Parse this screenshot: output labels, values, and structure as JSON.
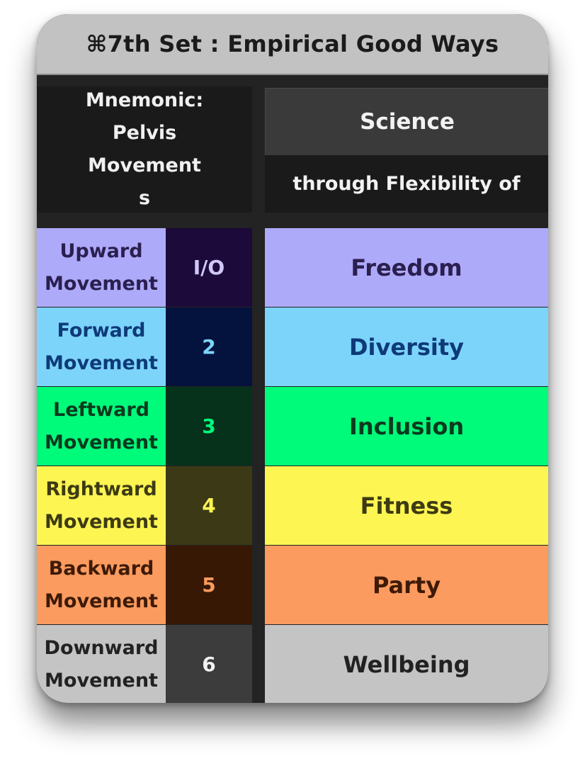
{
  "title": "⌘7th Set : Empirical Good Ways",
  "header": {
    "mnemonic_lines": [
      "Mnemonic:",
      "Pelvis",
      "Movement",
      "s"
    ],
    "science": "Science",
    "through": "through Flexibility of"
  },
  "rows": [
    {
      "label_1": "Upward",
      "label_2": "Movement",
      "num": "I/O",
      "value": "Freedom",
      "label_bg": "#aeaafa",
      "label_color": "#2a1f4e",
      "num_bg": "#1c0a3a",
      "num_color": "#cfc8f8",
      "value_bg": "#aeaafa",
      "value_color": "#2a1f4e"
    },
    {
      "label_1": "Forward",
      "label_2": "Movement",
      "num": "2",
      "value": "Diversity",
      "label_bg": "#7dd4fb",
      "label_color": "#0e3a78",
      "num_bg": "#04133d",
      "num_color": "#7dd4fb",
      "value_bg": "#7dd4fb",
      "value_color": "#0e3a78"
    },
    {
      "label_1": "Leftward",
      "label_2": "Movement",
      "num": "3",
      "value": "Inclusion",
      "label_bg": "#00fb7a",
      "label_color": "#0a3a1e",
      "num_bg": "#06311a",
      "num_color": "#00fb7a",
      "value_bg": "#00fb7a",
      "value_color": "#0a3a1e"
    },
    {
      "label_1": "Rightward",
      "label_2": "Movement",
      "num": "4",
      "value": "Fitness",
      "label_bg": "#fdf552",
      "label_color": "#3d3a13",
      "num_bg": "#3c3917",
      "num_color": "#fdf552",
      "value_bg": "#fdf552",
      "value_color": "#3d3a13"
    },
    {
      "label_1": "Backward",
      "label_2": "Movement",
      "num": "5",
      "value": "Party",
      "label_bg": "#fb9b5f",
      "label_color": "#3e1a07",
      "num_bg": "#371805",
      "num_color": "#fb9b5f",
      "value_bg": "#fb9b5f",
      "value_color": "#3e1a07"
    },
    {
      "label_1": "Downward",
      "label_2": "Movement",
      "num": "6",
      "value": "Wellbeing",
      "label_bg": "#c4c4c4",
      "label_color": "#222222",
      "num_bg": "#3c3c3c",
      "num_color": "#f2f2f2",
      "value_bg": "#c4c4c4",
      "value_color": "#222222"
    }
  ]
}
